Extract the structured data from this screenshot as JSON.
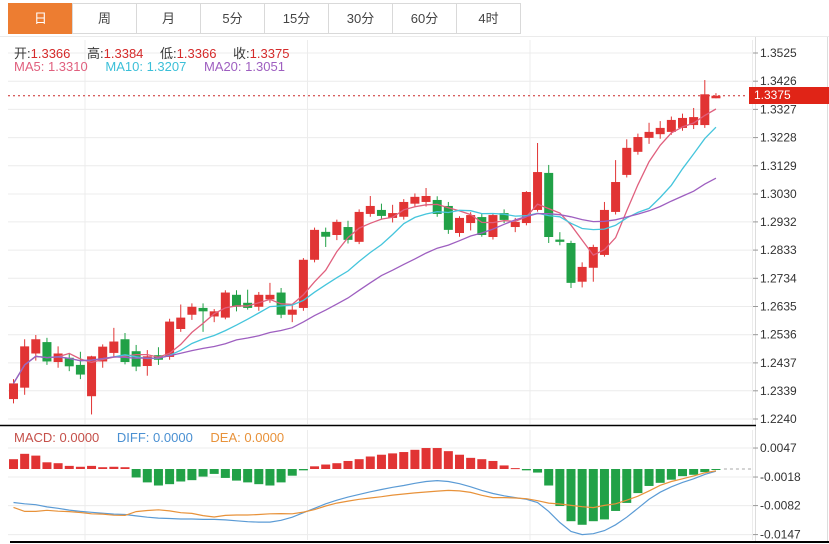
{
  "tabs": {
    "items": [
      {
        "name": "day",
        "label": "日",
        "selected": true
      },
      {
        "name": "week",
        "label": "周",
        "selected": false
      },
      {
        "name": "month",
        "label": "月",
        "selected": false
      },
      {
        "name": "5min",
        "label": "5分",
        "selected": false
      },
      {
        "name": "15min",
        "label": "15分",
        "selected": false
      },
      {
        "name": "30min",
        "label": "30分",
        "selected": false
      },
      {
        "name": "60min",
        "label": "60分",
        "selected": false
      },
      {
        "name": "4hour",
        "label": "4时",
        "selected": false
      }
    ]
  },
  "main": {
    "ohlc": [
      {
        "label": "开:",
        "value": "1.3366"
      },
      {
        "label": "高:",
        "value": "1.3384"
      },
      {
        "label": "低:",
        "value": "1.3366"
      },
      {
        "label": "收:",
        "value": "1.3375"
      }
    ],
    "ma_legend": [
      {
        "label": "MA5:",
        "value": "1.3310"
      },
      {
        "label": "MA10:",
        "value": "1.3207"
      },
      {
        "label": "MA20:",
        "value": "1.3051"
      }
    ],
    "price_badge": "1.3375"
  },
  "macd_legend": [
    {
      "label": "MACD:",
      "value": "0.0000"
    },
    {
      "label": "DIFF:",
      "value": "0.0000"
    },
    {
      "label": "DEA:",
      "value": "0.0000"
    }
  ],
  "colors": {
    "up": "#e13434",
    "down": "#21a147",
    "ma5": "#e0607e",
    "ma10": "#45c5dc",
    "ma20": "#9e5fc0",
    "diff": "#5b9bd5",
    "dea": "#e8923a",
    "price_line": "#cc2a2a",
    "badge": "#e02417",
    "tab_selected": "#ed7d31",
    "grid": "#ececec",
    "axis_text": "#333333"
  },
  "chart_data": {
    "type": "candlestick",
    "title": "",
    "period_selected": "日",
    "last_price": 1.3375,
    "ylim": [
      1.224,
      1.3525
    ],
    "price_ticks": [
      "1.3525",
      "1.3426",
      "1.3327",
      "1.3228",
      "1.3129",
      "1.3030",
      "1.2932",
      "1.2833",
      "1.2734",
      "1.2635",
      "1.2536",
      "1.2437",
      "1.2339",
      "1.2240"
    ],
    "ma_periods": [
      5,
      10,
      20
    ],
    "candles_ohlc": [
      [
        1.231,
        1.238,
        1.2295,
        1.2365
      ],
      [
        1.235,
        1.252,
        1.2325,
        1.2495
      ],
      [
        1.247,
        1.2535,
        1.2445,
        1.252
      ],
      [
        1.251,
        1.2525,
        1.243,
        1.2442
      ],
      [
        1.244,
        1.2495,
        1.242,
        1.247
      ],
      [
        1.2455,
        1.2472,
        1.2408,
        1.2425
      ],
      [
        1.243,
        1.2476,
        1.238,
        1.2396
      ],
      [
        1.232,
        1.2462,
        1.2256,
        1.246
      ],
      [
        1.2442,
        1.2502,
        1.242,
        1.2494
      ],
      [
        1.2472,
        1.256,
        1.2458,
        1.2512
      ],
      [
        1.252,
        1.2542,
        1.2432,
        1.244
      ],
      [
        1.2478,
        1.25,
        1.2408,
        1.2424
      ],
      [
        1.2426,
        1.2482,
        1.2392,
        1.246
      ],
      [
        1.2464,
        1.2492,
        1.243,
        1.2448
      ],
      [
        1.2458,
        1.2592,
        1.2448,
        1.2582
      ],
      [
        1.2556,
        1.2642,
        1.2546,
        1.2596
      ],
      [
        1.2606,
        1.2646,
        1.2588,
        1.2634
      ],
      [
        1.263,
        1.2646,
        1.2546,
        1.2618
      ],
      [
        1.26,
        1.2626,
        1.258,
        1.2618
      ],
      [
        1.2596,
        1.2692,
        1.259,
        1.2684
      ],
      [
        1.2676,
        1.2692,
        1.2618,
        1.2634
      ],
      [
        1.2648,
        1.2694,
        1.2624,
        1.263
      ],
      [
        1.2634,
        1.2686,
        1.262,
        1.2676
      ],
      [
        1.266,
        1.2718,
        1.2648,
        1.2676
      ],
      [
        1.2684,
        1.27,
        1.2594,
        1.2606
      ],
      [
        1.2606,
        1.2642,
        1.258,
        1.2624
      ],
      [
        1.263,
        1.2805,
        1.262,
        1.2799
      ],
      [
        1.2799,
        1.2912,
        1.279,
        1.2904
      ],
      [
        1.2897,
        1.2912,
        1.2844,
        1.288
      ],
      [
        1.2886,
        1.294,
        1.2868,
        1.2932
      ],
      [
        1.2914,
        1.2936,
        1.2856,
        1.2869
      ],
      [
        1.2862,
        1.2976,
        1.2854,
        1.2967
      ],
      [
        1.296,
        1.3023,
        1.295,
        1.2988
      ],
      [
        1.2974,
        1.2996,
        1.294,
        1.2953
      ],
      [
        1.2946,
        1.2992,
        1.293,
        1.2963
      ],
      [
        1.295,
        1.3012,
        1.294,
        1.3002
      ],
      [
        1.2996,
        1.3032,
        1.2984,
        1.302
      ],
      [
        1.3002,
        1.3051,
        1.2986,
        1.3023
      ],
      [
        1.3009,
        1.3022,
        1.295,
        1.296
      ],
      [
        1.2988,
        1.3002,
        1.289,
        1.2904
      ],
      [
        1.2893,
        1.2952,
        1.288,
        1.2946
      ],
      [
        1.2928,
        1.2966,
        1.2902,
        1.2956
      ],
      [
        1.2949,
        1.2962,
        1.288,
        1.2886
      ],
      [
        1.2879,
        1.296,
        1.287,
        1.2956
      ],
      [
        1.2963,
        1.2976,
        1.2928,
        1.2939
      ],
      [
        1.2914,
        1.2946,
        1.2896,
        1.2932
      ],
      [
        1.2928,
        1.304,
        1.292,
        1.3037
      ],
      [
        1.2974,
        1.3209,
        1.2968,
        1.3107
      ],
      [
        1.3104,
        1.3132,
        1.2858,
        1.2879
      ],
      [
        1.287,
        1.2896,
        1.285,
        1.2862
      ],
      [
        1.2858,
        1.2866,
        1.27,
        1.2718
      ],
      [
        1.2722,
        1.279,
        1.2702,
        1.2774
      ],
      [
        1.2771,
        1.2852,
        1.2722,
        1.2844
      ],
      [
        1.2816,
        1.3002,
        1.281,
        1.2974
      ],
      [
        1.2967,
        1.3149,
        1.2958,
        1.3072
      ],
      [
        1.3097,
        1.3222,
        1.3088,
        1.3192
      ],
      [
        1.3178,
        1.3242,
        1.3168,
        1.323
      ],
      [
        1.3227,
        1.328,
        1.3206,
        1.3248
      ],
      [
        1.324,
        1.3286,
        1.3224,
        1.3262
      ],
      [
        1.3248,
        1.3302,
        1.3238,
        1.329
      ],
      [
        1.3262,
        1.3312,
        1.3252,
        1.3297
      ],
      [
        1.3272,
        1.3332,
        1.3258,
        1.33
      ],
      [
        1.3272,
        1.343,
        1.3262,
        1.338
      ],
      [
        1.3366,
        1.3384,
        1.3366,
        1.3375
      ]
    ],
    "macd": {
      "ticks": [
        "0.0047",
        "-0.0018",
        "-0.0082",
        "-0.0147"
      ],
      "hist": [
        0.0022,
        0.0034,
        0.003,
        0.0015,
        0.0013,
        0.0007,
        0.0005,
        0.0007,
        0.0004,
        0.0005,
        0.0004,
        -0.0019,
        -0.003,
        -0.0037,
        -0.0034,
        -0.0028,
        -0.0025,
        -0.0017,
        -0.0011,
        -0.002,
        -0.0026,
        -0.003,
        -0.0034,
        -0.0037,
        -0.003,
        -0.0015,
        -0.0003,
        0.0006,
        0.001,
        0.0013,
        0.0018,
        0.0022,
        0.0028,
        0.0032,
        0.0035,
        0.0038,
        0.0043,
        0.0047,
        0.0047,
        0.004,
        0.0032,
        0.0025,
        0.0022,
        0.0018,
        0.0008,
        0.0002,
        -0.0003,
        -0.0008,
        -0.0037,
        -0.0083,
        -0.0117,
        -0.0125,
        -0.0117,
        -0.0113,
        -0.0094,
        -0.0076,
        -0.0054,
        -0.0038,
        -0.0031,
        -0.0024,
        -0.0016,
        -0.0013,
        -0.0007,
        -0.0002
      ],
      "diff": [
        -0.0075,
        -0.0078,
        -0.008,
        -0.0085,
        -0.0088,
        -0.0092,
        -0.0095,
        -0.0097,
        -0.0099,
        -0.0101,
        -0.0102,
        -0.0105,
        -0.0108,
        -0.011,
        -0.0111,
        -0.0112,
        -0.0112,
        -0.0113,
        -0.0113,
        -0.0114,
        -0.0116,
        -0.0118,
        -0.0119,
        -0.0119,
        -0.0115,
        -0.0108,
        -0.0098,
        -0.0088,
        -0.0078,
        -0.007,
        -0.0063,
        -0.0057,
        -0.0051,
        -0.0046,
        -0.0041,
        -0.0037,
        -0.0032,
        -0.0028,
        -0.0026,
        -0.0028,
        -0.0033,
        -0.004,
        -0.0048,
        -0.0055,
        -0.006,
        -0.0064,
        -0.0068,
        -0.0075,
        -0.0095,
        -0.012,
        -0.014,
        -0.0147,
        -0.0145,
        -0.0138,
        -0.0125,
        -0.0108,
        -0.0088,
        -0.0068,
        -0.0052,
        -0.004,
        -0.003,
        -0.0022,
        -0.0012,
        -0.0005
      ]
    }
  }
}
